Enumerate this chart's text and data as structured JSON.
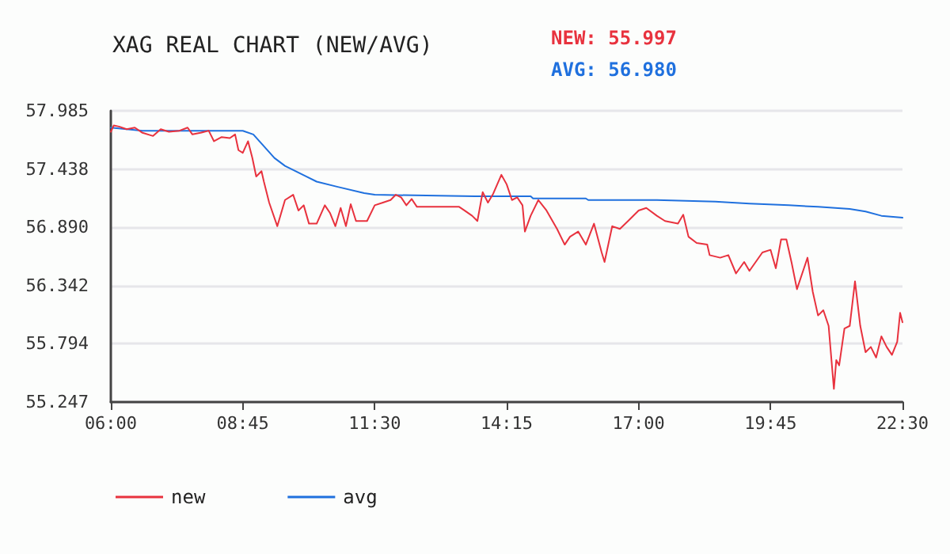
{
  "chart_data": {
    "type": "line",
    "title": "XAG REAL CHART (NEW/AVG)",
    "annotations": [
      "NEW: 55.997",
      "AVG: 56.980"
    ],
    "xlim": [
      6,
      22.5
    ],
    "xticks": [
      {
        "value": 6,
        "label": "06:00"
      },
      {
        "value": 8.75,
        "label": "08:45"
      },
      {
        "value": 11.5,
        "label": "11:30"
      },
      {
        "value": 14.25,
        "label": "14:15"
      },
      {
        "value": 17,
        "label": "17:00"
      },
      {
        "value": 19.75,
        "label": "19:45"
      },
      {
        "value": 22.5,
        "label": "22:30"
      }
    ],
    "ylim": [
      55.247,
      57.985
    ],
    "yticks": [
      55.247,
      55.794,
      56.342,
      {
        "value": 56.89,
        "label": "56.890"
      },
      57.438,
      57.985
    ],
    "grid": "y",
    "legend": "bottom left",
    "marker": "none",
    "series": [
      {
        "name": "new",
        "color": "#e8323e",
        "x": [
          6.0,
          6.06,
          6.17,
          6.33,
          6.5,
          6.66,
          6.88,
          7.04,
          7.21,
          7.43,
          7.6,
          7.7,
          7.87,
          8.04,
          8.15,
          8.31,
          8.48,
          8.59,
          8.66,
          8.75,
          8.86,
          8.95,
          9.03,
          9.14,
          9.19,
          9.3,
          9.47,
          9.63,
          9.8,
          9.91,
          10.02,
          10.13,
          10.29,
          10.46,
          10.57,
          10.68,
          10.79,
          10.9,
          11.0,
          11.11,
          11.34,
          11.5,
          11.67,
          11.83,
          11.94,
          12.05,
          12.16,
          12.27,
          12.38,
          13.26,
          13.37,
          13.53,
          13.64,
          13.75,
          13.86,
          13.97,
          14.14,
          14.25,
          14.36,
          14.47,
          14.58,
          14.63,
          14.75,
          14.91,
          15.08,
          15.3,
          15.46,
          15.57,
          15.74,
          15.9,
          16.07,
          16.23,
          16.29,
          16.45,
          16.61,
          16.78,
          17.0,
          17.16,
          17.38,
          17.55,
          17.82,
          17.93,
          18.04,
          18.21,
          18.43,
          18.48,
          18.7,
          18.87,
          19.03,
          19.2,
          19.31,
          19.58,
          19.75,
          19.86,
          19.97,
          20.08,
          20.19,
          20.3,
          20.41,
          20.52,
          20.63,
          20.74,
          20.85,
          20.96,
          21.07,
          21.12,
          21.18,
          21.29,
          21.4,
          21.51,
          21.62,
          21.73,
          21.84,
          21.95,
          22.06,
          22.17,
          22.28,
          22.39,
          22.45,
          22.5
        ],
        "values": [
          57.788,
          57.847,
          57.837,
          57.812,
          57.827,
          57.778,
          57.748,
          57.812,
          57.788,
          57.798,
          57.827,
          57.763,
          57.778,
          57.798,
          57.699,
          57.738,
          57.728,
          57.763,
          57.615,
          57.59,
          57.699,
          57.541,
          57.368,
          57.418,
          57.319,
          57.122,
          56.9,
          57.146,
          57.196,
          57.048,
          57.097,
          56.924,
          56.924,
          57.097,
          57.023,
          56.9,
          57.072,
          56.9,
          57.107,
          56.949,
          56.949,
          57.097,
          57.122,
          57.146,
          57.196,
          57.171,
          57.097,
          57.156,
          57.082,
          57.082,
          57.048,
          56.998,
          56.949,
          57.22,
          57.122,
          57.206,
          57.383,
          57.294,
          57.146,
          57.171,
          57.097,
          56.85,
          56.998,
          57.146,
          57.048,
          56.875,
          56.727,
          56.801,
          56.85,
          56.727,
          56.924,
          56.653,
          56.564,
          56.9,
          56.875,
          56.949,
          57.048,
          57.072,
          56.998,
          56.949,
          56.924,
          57.008,
          56.801,
          56.742,
          56.727,
          56.628,
          56.604,
          56.628,
          56.456,
          56.564,
          56.48,
          56.653,
          56.678,
          56.505,
          56.776,
          56.776,
          56.554,
          56.308,
          56.456,
          56.604,
          56.283,
          56.061,
          56.11,
          55.963,
          55.371,
          55.642,
          55.592,
          55.938,
          55.963,
          56.382,
          55.963,
          55.716,
          55.765,
          55.666,
          55.864,
          55.765,
          55.691,
          55.814,
          56.086,
          55.997
        ]
      },
      {
        "name": "avg",
        "color": "#1f70de",
        "x": [
          6.0,
          6.66,
          8.75,
          8.97,
          9.41,
          9.63,
          10.07,
          10.29,
          10.73,
          11.28,
          11.5,
          13.59,
          14.75,
          14.8,
          15.9,
          15.95,
          17.38,
          18.6,
          19.31,
          20.13,
          20.74,
          21.4,
          21.73,
          22.06,
          22.5
        ],
        "values": [
          57.827,
          57.797,
          57.797,
          57.763,
          57.541,
          57.467,
          57.368,
          57.319,
          57.27,
          57.211,
          57.196,
          57.181,
          57.181,
          57.161,
          57.161,
          57.146,
          57.146,
          57.131,
          57.112,
          57.097,
          57.082,
          57.063,
          57.038,
          56.998,
          56.98
        ]
      }
    ]
  }
}
